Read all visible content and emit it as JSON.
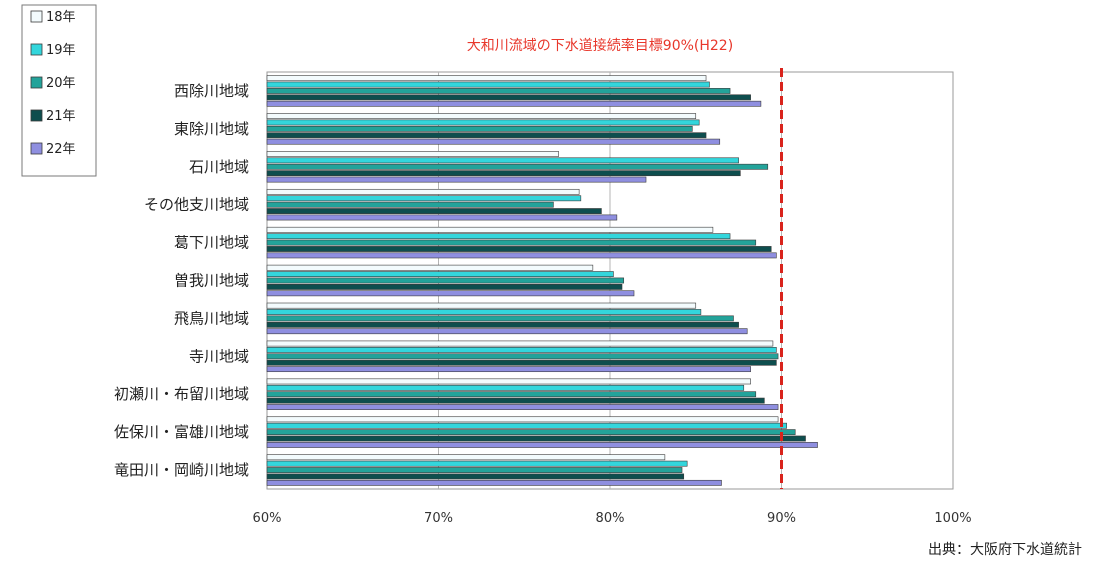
{
  "chart_data": {
    "type": "bar",
    "orientation": "horizontal",
    "categories": [
      "西除川地域",
      "東除川地域",
      "石川地域",
      "その他支川地域",
      "葛下川地域",
      "曽我川地域",
      "飛鳥川地域",
      "寺川地域",
      "初瀬川・布留川地域",
      "佐保川・富雄川地域",
      "竜田川・岡崎川地域"
    ],
    "series": [
      {
        "name": "18年",
        "color": "#f3fbfd",
        "values": [
          85.6,
          85.0,
          77.0,
          78.2,
          86.0,
          79.0,
          85.0,
          89.5,
          88.2,
          89.8,
          83.2
        ]
      },
      {
        "name": "19年",
        "color": "#33d6dc",
        "values": [
          85.8,
          85.2,
          87.5,
          78.3,
          87.0,
          80.2,
          85.3,
          89.7,
          87.8,
          90.3,
          84.5
        ]
      },
      {
        "name": "20年",
        "color": "#23a39a",
        "values": [
          87.0,
          84.8,
          89.2,
          76.7,
          88.5,
          80.8,
          87.2,
          89.8,
          88.5,
          90.8,
          84.2
        ]
      },
      {
        "name": "21年",
        "color": "#0e4e4e",
        "values": [
          88.2,
          85.6,
          87.6,
          79.5,
          89.4,
          80.7,
          87.5,
          89.7,
          89.0,
          91.4,
          84.3
        ]
      },
      {
        "name": "22年",
        "color": "#8f8fe0",
        "values": [
          88.8,
          86.4,
          82.1,
          80.4,
          89.7,
          81.4,
          88.0,
          88.2,
          89.8,
          92.1,
          86.5
        ]
      }
    ],
    "xlim": [
      60,
      100
    ],
    "xticks": [
      60,
      70,
      80,
      90,
      100
    ],
    "xtick_labels": [
      "60%",
      "70%",
      "80%",
      "90%",
      "100%"
    ],
    "xlabel": "",
    "ylabel": "",
    "title": "",
    "target_line": {
      "value": 90,
      "color": "#d9231c",
      "label": "大和川流域の下水道接続率目標90%(H22)"
    },
    "grid": "vertical",
    "legend": "top-left",
    "source": "出典：大阪府下水道統計"
  }
}
